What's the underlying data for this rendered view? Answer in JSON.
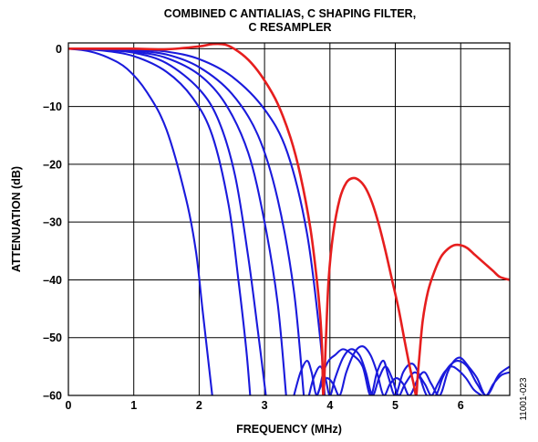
{
  "chart_data": {
    "type": "line",
    "title_lines": [
      "COMBINED C ANTIALIAS, C SHAPING FILTER,",
      "C RESAMPLER"
    ],
    "xlabel": "FREQUENCY (MHz)",
    "ylabel": "ATTENUATION (dB)",
    "xlim": [
      0,
      6.75
    ],
    "ylim": [
      -60,
      1
    ],
    "x_ticks": [
      0,
      1,
      2,
      3,
      4,
      5,
      6
    ],
    "x_tick_labels": [
      "0",
      "1",
      "2",
      "3",
      "4",
      "5",
      "6"
    ],
    "y_ticks": [
      0,
      -10,
      -20,
      -30,
      -40,
      -50,
      -60
    ],
    "y_tick_labels": [
      "0",
      "–10",
      "–20",
      "–30",
      "–40",
      "–50",
      "–60"
    ],
    "grid": true,
    "figure_id": "11001-023",
    "colors": {
      "blue": "#1a1adc",
      "red": "#e61e1e",
      "grid": "#000000"
    },
    "series": [
      {
        "color": "#1a1adc",
        "x": [
          0,
          0.3,
          0.6,
          0.9,
          1.2,
          1.5,
          1.8,
          1.95,
          2.05,
          2.15,
          2.2
        ],
        "y": [
          0,
          -0.4,
          -1.5,
          -3.5,
          -7.5,
          -14,
          -26,
          -35,
          -45,
          -55,
          -60
        ]
      },
      {
        "color": "#1a1adc",
        "x": [
          0,
          0.5,
          1.0,
          1.5,
          1.9,
          2.2,
          2.45,
          2.6,
          2.72,
          2.78
        ],
        "y": [
          0,
          -0.3,
          -1.3,
          -4,
          -8.5,
          -15,
          -27,
          -40,
          -52,
          -60
        ]
      },
      {
        "color": "#1a1adc",
        "x": [
          0,
          0.5,
          1.0,
          1.5,
          2.0,
          2.3,
          2.55,
          2.75,
          2.9,
          3.02
        ],
        "y": [
          0,
          -0.2,
          -0.7,
          -2.5,
          -7,
          -12.5,
          -22,
          -36,
          -49,
          -60
        ]
      },
      {
        "color": "#1a1adc",
        "x": [
          0,
          0.5,
          1.0,
          1.5,
          2.0,
          2.4,
          2.75,
          3.0,
          3.2,
          3.33
        ],
        "y": [
          0,
          -0.1,
          -0.5,
          -1.6,
          -4.5,
          -9.5,
          -18,
          -30,
          -44,
          -60
        ]
      },
      {
        "color": "#1a1adc",
        "x": [
          0,
          0.5,
          1.0,
          1.5,
          2.0,
          2.5,
          2.9,
          3.2,
          3.45,
          3.6
        ],
        "y": [
          0,
          -0.1,
          -0.3,
          -1.0,
          -3.2,
          -7.8,
          -15,
          -26,
          -42,
          -60
        ]
      },
      {
        "color": "#1a1adc",
        "x": [
          0,
          0.5,
          1.0,
          1.5,
          2.0,
          2.5,
          3.0,
          3.35,
          3.65,
          3.85,
          3.92
        ],
        "y": [
          0,
          0,
          -0.1,
          -0.5,
          -1.8,
          -4.8,
          -10.5,
          -18,
          -32,
          -50,
          -60
        ]
      },
      {
        "color": "#1a1adc",
        "x": [
          3.45,
          3.55,
          3.65,
          3.72,
          3.8,
          3.9,
          3.98,
          4.08,
          4.2,
          4.35,
          4.5,
          4.62,
          4.72,
          4.82,
          4.9,
          5.0,
          5.12,
          5.25,
          5.35,
          5.48,
          5.62,
          5.72,
          5.82,
          5.95,
          6.1,
          6.25,
          6.4,
          6.55,
          6.62,
          6.75
        ],
        "y": [
          -60,
          -56,
          -54,
          -56,
          -60,
          -56,
          -54,
          -53,
          -52,
          -53,
          -55,
          -60,
          -56,
          -54,
          -57,
          -60,
          -56,
          -54.5,
          -56,
          -60,
          -60,
          -57,
          -55,
          -54,
          -55,
          -58,
          -60,
          -57,
          -56,
          -55
        ]
      },
      {
        "color": "#1a1adc",
        "x": [
          3.68,
          3.75,
          3.85,
          3.93,
          4.0,
          4.08,
          4.2,
          4.32,
          4.45,
          4.55,
          4.65,
          4.75,
          4.85,
          4.95,
          5.05,
          5.15,
          5.3,
          5.45,
          5.55,
          5.65,
          5.75,
          5.85,
          5.95,
          6.08,
          6.2,
          6.32
        ],
        "y": [
          -60,
          -57,
          -55,
          -57,
          -60,
          -57,
          -53.5,
          -52,
          -53,
          -56,
          -60,
          -57,
          -55,
          -57,
          -60,
          -58,
          -56,
          -58,
          -60,
          -58,
          -56,
          -55,
          -55.5,
          -57,
          -59,
          -60
        ]
      },
      {
        "color": "#1a1adc",
        "x": [
          3.8,
          3.88,
          3.96,
          4.05,
          4.15,
          4.25,
          4.38,
          4.5,
          4.62,
          4.72,
          4.82,
          4.92,
          5.02,
          5.12,
          5.22,
          5.35,
          5.45,
          5.55,
          5.68,
          5.8,
          5.9,
          6.0,
          6.12,
          6.25,
          6.38,
          6.5,
          6.62,
          6.75
        ],
        "y": [
          -60,
          -58,
          -57,
          -58,
          -60,
          -56,
          -52.5,
          -51.5,
          -53,
          -56,
          -60,
          -58,
          -57,
          -58,
          -60,
          -57,
          -56,
          -58,
          -60,
          -56,
          -54,
          -53.5,
          -55,
          -57,
          -60,
          -58,
          -56.5,
          -56
        ]
      },
      {
        "name": "",
        "color": "#e61e1e",
        "x": [
          0,
          0.5,
          1.0,
          1.5,
          2.0,
          2.2,
          2.4,
          2.6,
          2.8,
          3.0,
          3.2,
          3.4,
          3.55,
          3.7,
          3.8,
          3.85,
          3.88,
          3.9,
          3.94,
          3.98,
          4.05,
          4.15,
          4.25,
          4.35,
          4.45,
          4.55,
          4.65,
          4.75,
          4.85,
          4.95,
          5.05,
          5.15,
          5.22,
          5.28,
          5.32,
          5.34,
          5.37,
          5.42,
          5.5,
          5.6,
          5.7,
          5.8,
          5.9,
          6.0,
          6.1,
          6.2,
          6.3,
          6.4,
          6.5,
          6.6,
          6.75
        ],
        "y": [
          0,
          0,
          0,
          -0.1,
          0.4,
          0.8,
          0.7,
          -0.5,
          -2.5,
          -5.5,
          -9.5,
          -15.5,
          -22,
          -31,
          -40,
          -46,
          -52,
          -60,
          -50,
          -40,
          -32,
          -26,
          -23.2,
          -22.4,
          -22.8,
          -24.2,
          -26.8,
          -30.5,
          -35,
          -40,
          -45,
          -51,
          -55,
          -58,
          -60,
          -57,
          -53,
          -47,
          -42,
          -38.5,
          -36,
          -34.7,
          -34,
          -34,
          -34.5,
          -35.5,
          -36.5,
          -37.5,
          -38.5,
          -39.5,
          -40
        ]
      }
    ]
  }
}
